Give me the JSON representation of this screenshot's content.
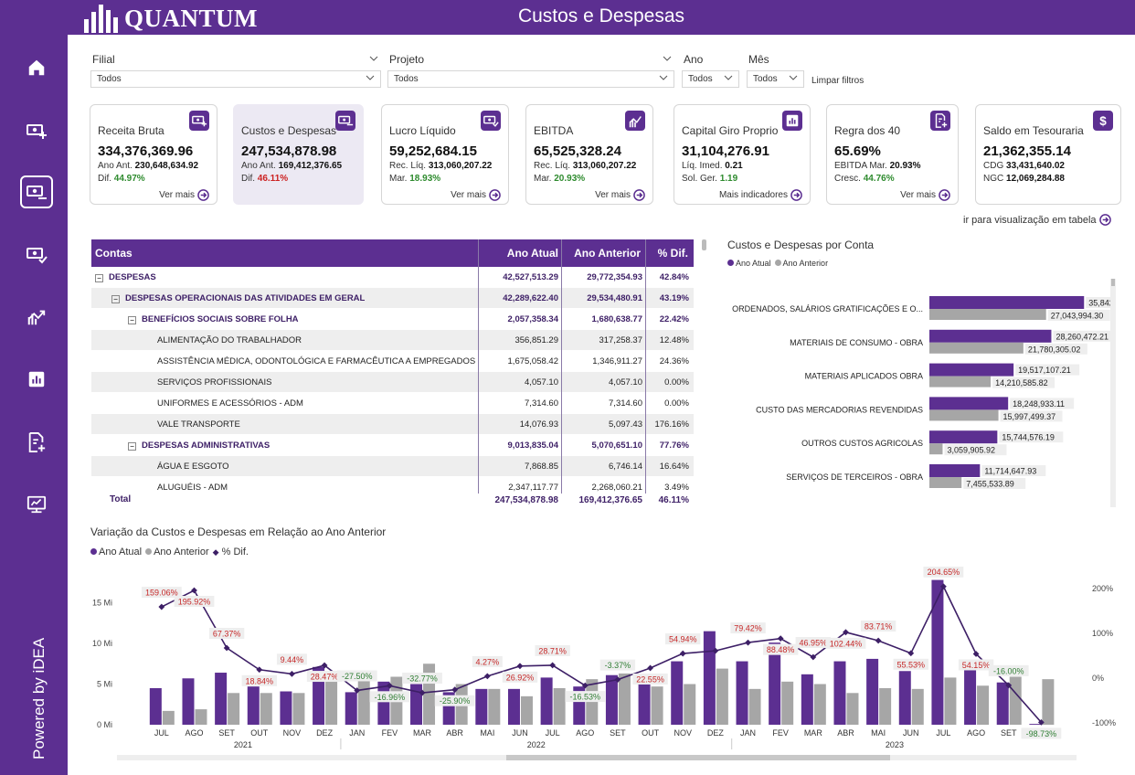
{
  "app": {
    "logo_text": "QUANTUM",
    "title": "Custos e Despesas",
    "powered_by": "Powered by iDEA"
  },
  "colors": {
    "brand": "#5c2f91",
    "current_year": "#5c2f91",
    "previous_year": "#a6a6a6",
    "positive": "#2e8b2e",
    "negative": "#cc2222"
  },
  "sidebar": {
    "icons": [
      "home-icon",
      "income-icon",
      "expenses-icon",
      "checked-money-icon",
      "trend-icon",
      "bar-chart-icon",
      "report-icon",
      "dashboard-icon"
    ],
    "active": "expenses-icon"
  },
  "filters": {
    "filial": {
      "label": "Filial",
      "value": "Todos"
    },
    "projeto": {
      "label": "Projeto",
      "value": "Todos"
    },
    "ano": {
      "label": "Ano",
      "value": "Todos"
    },
    "mes": {
      "label": "Mês",
      "value": "Todos"
    },
    "clear": "Limpar filtros"
  },
  "cards": [
    {
      "title": "Receita Bruta",
      "value": "334,376,369.96",
      "l1_label": "Ano Ant.",
      "l1_value": "230,648,634.92",
      "l2_label": "Dif.",
      "l2_value": "44.97%",
      "l2_color": "positive",
      "link": "Ver mais",
      "icon": "income-icon"
    },
    {
      "title": "Custos e Despesas",
      "value": "247,534,878.98",
      "l1_label": "Ano Ant.",
      "l1_value": "169,412,376.65",
      "l2_label": "Dif.",
      "l2_value": "46.11%",
      "l2_color": "negative",
      "link": "",
      "icon": "expenses-icon"
    },
    {
      "title": "Lucro Líquido",
      "value": "59,252,684.15",
      "l1_label": "Rec. Líq.",
      "l1_value": "313,060,207.22",
      "l2_label": "Mar.",
      "l2_value": "18.93%",
      "l2_color": "positive",
      "link": "Ver mais",
      "icon": "checked-money-icon"
    },
    {
      "title": "EBITDA",
      "value": "65,525,328.24",
      "l1_label": "Rec. Líq.",
      "l1_value": "313,060,207.22",
      "l2_label": "Mar.",
      "l2_value": "20.93%",
      "l2_color": "positive",
      "link": "Ver mais",
      "icon": "trend-icon"
    },
    {
      "title": "Capital Giro Proprio",
      "value": "31,104,276.91",
      "l1_label": "Líq. Imed.",
      "l1_value": "0.21",
      "l2_label": "Sol. Ger.",
      "l2_value": "1.19",
      "l2_color": "positive",
      "link": "Mais indicadores",
      "icon": "bar-chart-icon"
    },
    {
      "title": "Regra dos 40",
      "value": "65.69%",
      "l1_label": "EBITDA Mar.",
      "l1_value": "20.93%",
      "l2_label": "Cresc.",
      "l2_value": "44.76%",
      "l2_color": "positive",
      "link": "Ver mais",
      "icon": "report-icon"
    },
    {
      "title": "Saldo em Tesouraria",
      "value": "21,362,355.14",
      "l1_label": "CDG",
      "l1_value": "33,431,640.02",
      "l2_label": "NGC",
      "l2_value": "12,069,284.88",
      "l2_color": "plain",
      "link": "",
      "icon": "dollar-icon"
    }
  ],
  "table_link": "ir para visualização em tabela",
  "table": {
    "headers": [
      "Contas",
      "Ano Atual",
      "Ano Anterior",
      "% Dif."
    ],
    "rows": [
      {
        "label": "DESPESAS",
        "level": 0,
        "expand": "⊟",
        "atual": "42,527,513.29",
        "anterior": "29,772,354.93",
        "dif": "42.84%"
      },
      {
        "label": "DESPESAS OPERACIONAIS DAS ATIVIDADES EM GERAL",
        "level": 1,
        "expand": "⊟",
        "atual": "42,289,622.40",
        "anterior": "29,534,480.91",
        "dif": "43.19%"
      },
      {
        "label": "BENEFÍCIOS SOCIAIS SOBRE FOLHA",
        "level": 2,
        "expand": "⊟",
        "atual": "2,057,358.34",
        "anterior": "1,680,638.77",
        "dif": "22.42%"
      },
      {
        "label": "ALIMENTAÇÃO DO TRABALHADOR",
        "level": 3,
        "expand": "",
        "atual": "356,851.29",
        "anterior": "317,258.37",
        "dif": "12.48%"
      },
      {
        "label": "ASSISTÊNCIA MÉDICA, ODONTOLÓGICA E FARMACÊUTICA A EMPREGADOS",
        "level": 3,
        "expand": "",
        "atual": "1,675,058.42",
        "anterior": "1,346,911.27",
        "dif": "24.36%"
      },
      {
        "label": "SERVIÇOS PROFISSIONAIS",
        "level": 3,
        "expand": "",
        "atual": "4,057.10",
        "anterior": "4,057.10",
        "dif": "0.00%"
      },
      {
        "label": "UNIFORMES E ACESSÓRIOS - ADM",
        "level": 3,
        "expand": "",
        "atual": "7,314.60",
        "anterior": "7,314.60",
        "dif": "0.00%"
      },
      {
        "label": "VALE TRANSPORTE",
        "level": 3,
        "expand": "",
        "atual": "14,076.93",
        "anterior": "5,097.43",
        "dif": "176.16%"
      },
      {
        "label": "DESPESAS ADMINISTRATIVAS",
        "level": 2,
        "expand": "⊟",
        "atual": "9,013,835.04",
        "anterior": "5,070,651.10",
        "dif": "77.76%"
      },
      {
        "label": "ÁGUA E ESGOTO",
        "level": 3,
        "expand": "",
        "atual": "7,868.85",
        "anterior": "6,746.14",
        "dif": "16.64%"
      },
      {
        "label": "ALUGUÉIS - ADM",
        "level": 3,
        "expand": "",
        "atual": "2,347,117.77",
        "anterior": "2,268,060.21",
        "dif": "3.49%"
      }
    ],
    "total": {
      "label": "Total",
      "atual": "247,534,878.98",
      "anterior": "169,412,376.65",
      "dif": "46.11%"
    }
  },
  "bar_chart": {
    "title": "Custos e Despesas por Conta",
    "legend": [
      "Ano Atual",
      "Ano Anterior"
    ]
  },
  "variation_chart": {
    "title": "Variação da Custos e Despesas em Relação ao Ano Anterior",
    "legend": [
      "Ano Atual",
      "Ano Anterior",
      "% Dif."
    ]
  },
  "chart_data": [
    {
      "type": "bar",
      "orientation": "horizontal",
      "title": "Custos e Despesas por Conta",
      "categories": [
        "ORDENADOS, SALÁRIOS GRATIFICAÇÕES E O...",
        "MATERIAIS DE CONSUMO - OBRA",
        "MATERIAIS APLICADOS OBRA",
        "CUSTO DAS MERCADORIAS REVENDIDAS",
        "OUTROS CUSTOS AGRICOLAS",
        "SERVIÇOS DE TERCEIROS - OBRA"
      ],
      "series": [
        {
          "name": "Ano Atual",
          "values": [
            35842410.39,
            28260472.21,
            19517107.21,
            18248933.11,
            15744576.19,
            11714647.93
          ],
          "labels": [
            "35,842,410.39",
            "28,260,472.21",
            "19,517,107.21",
            "18,248,933.11",
            "15,744,576.19",
            "11,714,647.93"
          ]
        },
        {
          "name": "Ano Anterior",
          "values": [
            27043994.3,
            21780305.02,
            14210585.82,
            15997499.37,
            3059905.92,
            7455533.89
          ],
          "labels": [
            "27,043,994.30",
            "21,780,305.02",
            "14,210,585.82",
            "15,997,499.37",
            "3,059,905.92",
            "7,455,533.89"
          ]
        }
      ],
      "xlim": [
        0,
        36000000
      ]
    },
    {
      "type": "bar",
      "title": "Variação da Custos e Despesas em Relação ao Ano Anterior",
      "categories": [
        "JUL",
        "AGO",
        "SET",
        "OUT",
        "NOV",
        "DEZ",
        "JAN",
        "FEV",
        "MAR",
        "ABR",
        "MAI",
        "JUN",
        "JUL",
        "AGO",
        "SET",
        "OUT",
        "NOV",
        "DEZ",
        "JAN",
        "FEV",
        "MAR",
        "ABR",
        "MAI",
        "JUN",
        "JUL",
        "AGO",
        "SET",
        "OUT"
      ],
      "years": [
        {
          "label": "2021",
          "start": 0,
          "end": 5
        },
        {
          "label": "2022",
          "start": 6,
          "end": 17
        },
        {
          "label": "2023",
          "start": 18,
          "end": 27
        }
      ],
      "series": [
        {
          "name": "Ano Atual",
          "type": "bar",
          "values": [
            4.5,
            5.7,
            6.4,
            4.7,
            4.1,
            7.1,
            4.0,
            5.3,
            5.0,
            4.0,
            4.4,
            4.4,
            5.8,
            4.7,
            6.1,
            5.7,
            7.8,
            11.5,
            7.8,
            10.1,
            6.2,
            7.8,
            8.1,
            6.6,
            17.8,
            7.3,
            5.2,
            0.1
          ]
        },
        {
          "name": "Ano Anterior",
          "type": "bar",
          "values": [
            1.7,
            1.9,
            3.9,
            3.9,
            3.9,
            5.4,
            5.9,
            5.9,
            7.5,
            5.0,
            4.4,
            3.5,
            4.5,
            5.6,
            6.3,
            4.7,
            5.0,
            6.9,
            4.4,
            5.3,
            5.0,
            3.9,
            4.5,
            4.4,
            5.8,
            4.8,
            5.9,
            5.6
          ]
        },
        {
          "name": "% Dif.",
          "type": "line",
          "axis": "right",
          "values": [
            159.06,
            195.92,
            67.37,
            18.84,
            9.44,
            28.47,
            -27.5,
            -16.96,
            -32.77,
            -25.9,
            4.27,
            26.92,
            28.71,
            -16.53,
            -3.37,
            22.55,
            54.94,
            61.0,
            79.42,
            88.48,
            46.95,
            102.44,
            83.71,
            55.53,
            204.65,
            54.15,
            -16.0,
            -98.73
          ],
          "labels": [
            "159.06%",
            "195.92%",
            "67.37%",
            "18.84%",
            "9.44%",
            "28.47%",
            "-27.50%",
            "-16.96%",
            "-32.77%",
            "-25.90%",
            "4.27%",
            "26.92%",
            "28.71%",
            "-16.53%",
            "-3.37%",
            "22.55%",
            "54.94%",
            "",
            "79.42%",
            "88.48%",
            "46.95%",
            "102.44%",
            "83.71%",
            "55.53%",
            "204.65%",
            "54.15%",
            "-16.00%",
            "-98.73%"
          ]
        }
      ],
      "y_ticks": [
        "0 Mi",
        "5 Mi",
        "10 Mi",
        "15 Mi"
      ],
      "ylim": [
        0,
        17.8
      ],
      "y2_ticks": [
        "-100%",
        "0%",
        "100%",
        "200%"
      ],
      "y2lim": [
        -100,
        200
      ]
    }
  ]
}
